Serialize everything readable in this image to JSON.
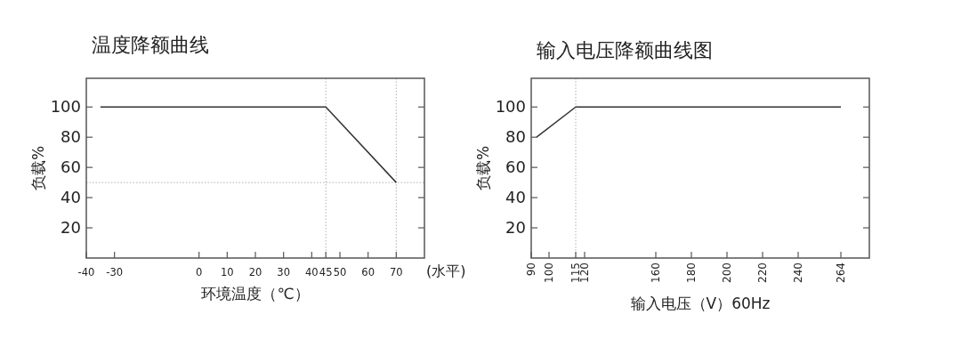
{
  "chart_data": [
    {
      "type": "line",
      "title": "温度降额曲线",
      "xlabel": "环境温度（℃）",
      "ylabel": "负载%",
      "x": [
        -35,
        45,
        70
      ],
      "series": [
        {
          "color": "#333333",
          "values": [
            100,
            100,
            50
          ]
        }
      ],
      "xlim": [
        -40,
        80
      ],
      "xticks": [
        -40,
        -30,
        0,
        10,
        20,
        30,
        40,
        45,
        50,
        60,
        70
      ],
      "ylim": [
        0,
        119
      ],
      "yticks": [
        20,
        40,
        60,
        80,
        100
      ],
      "ref_lines": [
        {
          "axis": "x",
          "value": 45,
          "color": "#b0b0b0",
          "line_style": "dotted"
        },
        {
          "axis": "x",
          "value": 70,
          "color": "#b0b0b0",
          "line_style": "dotted"
        },
        {
          "axis": "y",
          "value": 50,
          "color": "#b0b0b0",
          "line_style": "dotted"
        }
      ],
      "annotations": [
        "(水平)"
      ]
    },
    {
      "type": "line",
      "title": "输入电压降额曲线图",
      "xlabel": "输入电压（V）60Hz",
      "ylabel": "负载%",
      "x": [
        93,
        115,
        264
      ],
      "series": [
        {
          "color": "#333333",
          "values": [
            80,
            100,
            100
          ]
        }
      ],
      "xlim": [
        90,
        280
      ],
      "xticks": [
        90,
        100,
        115,
        120,
        160,
        180,
        200,
        220,
        240,
        264
      ],
      "ylim": [
        0,
        119
      ],
      "yticks": [
        20,
        40,
        60,
        80,
        100
      ],
      "ref_lines": [
        {
          "axis": "x",
          "value": 115,
          "color": "#b0b0b0",
          "line_style": "dotted"
        }
      ]
    }
  ]
}
